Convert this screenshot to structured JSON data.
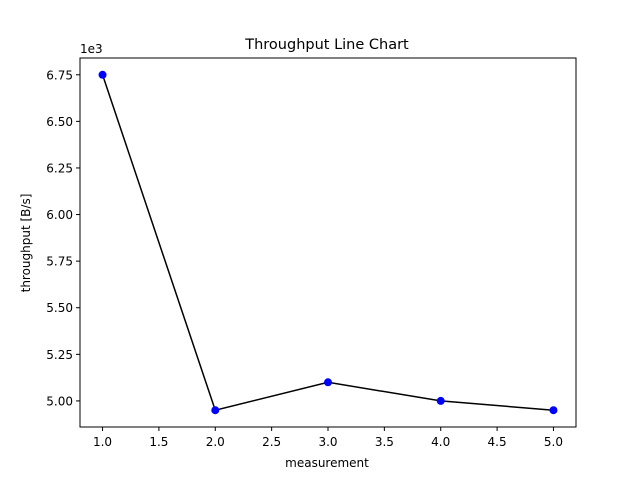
{
  "chart_data": {
    "type": "line",
    "title": "Throughput Line Chart",
    "xlabel": "measurement",
    "ylabel": "throughput [B/s]",
    "y_offset_label": "1e3",
    "x": [
      1.0,
      2.0,
      3.0,
      4.0,
      5.0
    ],
    "series": [
      {
        "values": [
          6750,
          4950,
          5100,
          5000,
          4950
        ]
      }
    ],
    "xlim": [
      0.8,
      5.2
    ],
    "ylim": [
      4860,
      6840
    ],
    "x_ticks": [
      1.0,
      1.5,
      2.0,
      2.5,
      3.0,
      3.5,
      4.0,
      4.5,
      5.0
    ],
    "x_tick_labels": [
      "1.0",
      "1.5",
      "2.0",
      "2.5",
      "3.0",
      "3.5",
      "4.0",
      "4.5",
      "5.0"
    ],
    "y_ticks": [
      5000,
      5250,
      5500,
      5750,
      6000,
      6250,
      6500,
      6750
    ],
    "y_tick_labels": [
      "5.00",
      "5.25",
      "5.50",
      "5.75",
      "6.00",
      "6.25",
      "6.50",
      "6.75"
    ],
    "grid": false,
    "legend": "none",
    "colors": {
      "line": "#000000",
      "marker": "#0000ff",
      "axes": "#000000"
    }
  }
}
